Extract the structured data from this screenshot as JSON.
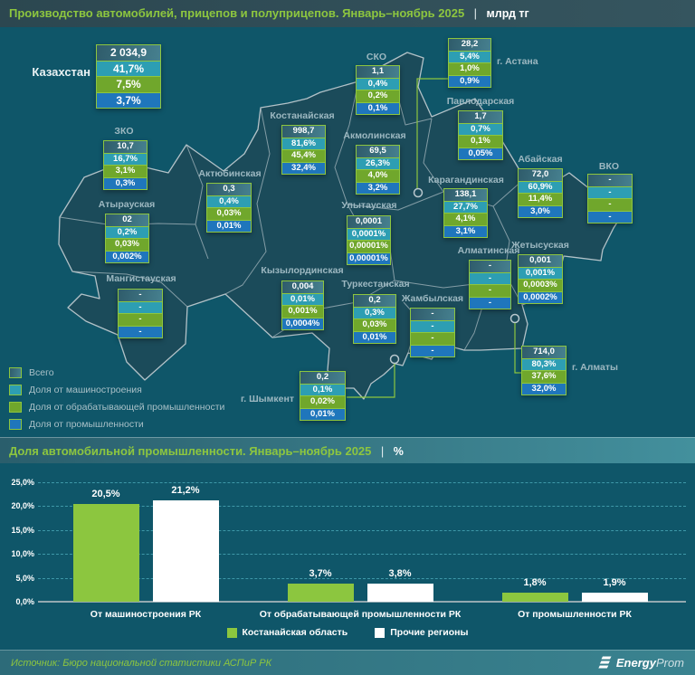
{
  "header": {
    "title": "Производство автомобилей, прицепов и полуприцепов. Январь–ноябрь 2025",
    "separator": "|",
    "unit": "млрд тг"
  },
  "map": {
    "country": {
      "id": "kaz",
      "label": "Казахстан",
      "values": [
        "2 034,9",
        "41,7%",
        "7,5%",
        "3,7%"
      ]
    },
    "regions": [
      {
        "id": "sko",
        "label": "СКО",
        "values": [
          "1,1",
          "0,4%",
          "0,2%",
          "0,1%"
        ]
      },
      {
        "id": "astana",
        "label": "г. Астана",
        "values": [
          "28,2",
          "5,4%",
          "1,0%",
          "0,9%"
        ]
      },
      {
        "id": "pavlodar",
        "label": "Павлодарская",
        "values": [
          "1,7",
          "0,7%",
          "0,1%",
          "0,05%"
        ]
      },
      {
        "id": "kostanay",
        "label": "Костанайская",
        "values": [
          "998,7",
          "81,6%",
          "45,4%",
          "32,4%"
        ]
      },
      {
        "id": "akmola",
        "label": "Акмолинская",
        "values": [
          "69,5",
          "26,3%",
          "4,0%",
          "3,2%"
        ]
      },
      {
        "id": "zko",
        "label": "ЗКО",
        "values": [
          "10,7",
          "16,7%",
          "3,1%",
          "0,3%"
        ]
      },
      {
        "id": "aktobe",
        "label": "Актюбинская",
        "values": [
          "0,3",
          "0,4%",
          "0,03%",
          "0,01%"
        ]
      },
      {
        "id": "atyrau",
        "label": "Атырауская",
        "values": [
          "02",
          "0,2%",
          "0,03%",
          "0,002%"
        ]
      },
      {
        "id": "mangystau",
        "label": "Мангистауская",
        "values": [
          "-",
          "-",
          "-",
          "-"
        ]
      },
      {
        "id": "abai",
        "label": "Абайская",
        "values": [
          "72,0",
          "60,9%",
          "11,4%",
          "3,0%"
        ]
      },
      {
        "id": "vko",
        "label": "ВКО",
        "values": [
          "-",
          "-",
          "-",
          "-"
        ]
      },
      {
        "id": "karaganda",
        "label": "Карагандинская",
        "values": [
          "138,1",
          "27,7%",
          "4,1%",
          "3,1%"
        ]
      },
      {
        "id": "ulytau",
        "label": "Улытауская",
        "values": [
          "0,0001",
          "0,0001%",
          "0,00001%",
          "0,00001%"
        ]
      },
      {
        "id": "zhetysu",
        "label": "Жетысуская",
        "values": [
          "0,001",
          "0,001%",
          "0,0003%",
          "0,0002%"
        ]
      },
      {
        "id": "almaty-obl",
        "label": "Алматинская",
        "values": [
          "-",
          "-",
          "-",
          "-"
        ]
      },
      {
        "id": "almaty-city",
        "label": "г. Алматы",
        "values": [
          "714,0",
          "80,3%",
          "37,6%",
          "32,0%"
        ]
      },
      {
        "id": "kyzylorda",
        "label": "Кызылординская",
        "values": [
          "0,004",
          "0,01%",
          "0,001%",
          "0,0004%"
        ]
      },
      {
        "id": "turkestan",
        "label": "Туркестанская",
        "values": [
          "0,2",
          "0,3%",
          "0,03%",
          "0,01%"
        ]
      },
      {
        "id": "zhambyl",
        "label": "Жамбылская",
        "values": [
          "-",
          "-",
          "-",
          "-"
        ]
      },
      {
        "id": "shymkent",
        "label": "г. Шымкент",
        "values": [
          "0,2",
          "0,1%",
          "0,02%",
          "0,01%"
        ]
      }
    ],
    "legend": [
      {
        "type": "total",
        "label": "Всего",
        "color": "#33606F"
      },
      {
        "type": "machinery",
        "label": "Доля от машиностроения",
        "color": "#2D9EB3"
      },
      {
        "type": "manufacturing",
        "label": "Доля от обрабатывающей промышленности",
        "color": "#70A72C"
      },
      {
        "type": "industry",
        "label": "Доля от промышленности",
        "color": "#1F76BC"
      }
    ],
    "row_colors": {
      "total": "#33606F",
      "machinery": "#2D9EB3",
      "manufacturing": "#70A72C",
      "industry": "#1F76BC",
      "border": "#8DC63F"
    }
  },
  "chart": {
    "title": "Доля автомобильной промышленности. Январь–ноябрь 2025",
    "separator": "|",
    "unit": "%"
  },
  "chart_data": {
    "type": "bar",
    "title": "Доля автомобильной промышленности. Январь–ноябрь 2025",
    "unit": "%",
    "categories": [
      "От машиностроения РК",
      "От обрабатывающей промышленности РК",
      "От промышленности РК"
    ],
    "series": [
      {
        "name": "Костанайская область",
        "color": "#8CC63F",
        "values": [
          20.5,
          3.7,
          1.8
        ]
      },
      {
        "name": "Прочие регионы",
        "color": "#FFFFFF",
        "values": [
          21.2,
          3.8,
          1.9
        ]
      }
    ],
    "value_labels": [
      [
        "20,5%",
        "3,7%",
        "1,8%"
      ],
      [
        "21,2%",
        "3,8%",
        "1,9%"
      ]
    ],
    "ylim": [
      0,
      25
    ],
    "yticks": [
      "0,0%",
      "5,0%",
      "10,0%",
      "15,0%",
      "20,0%",
      "25,0%"
    ],
    "grid": "horizontal-dashed",
    "legend_position": "bottom"
  },
  "footer": {
    "source": "Источник: Бюро национальной статистики АСПиР РК",
    "brand_bold": "Energy",
    "brand_light": "Prom"
  }
}
